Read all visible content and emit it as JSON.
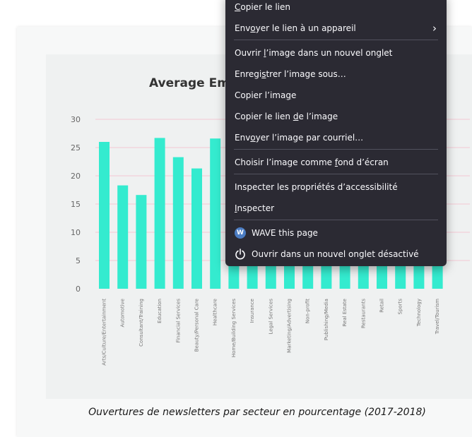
{
  "figure": {
    "caption": "Ouvertures de newsletters par secteur en pourcentage (2017-2018)"
  },
  "chart_data": {
    "type": "bar",
    "title": "Average Ema",
    "xlabel": "",
    "ylabel": "",
    "ylim": [
      0,
      30
    ],
    "yticks": [
      0,
      5,
      10,
      15,
      20,
      25,
      30
    ],
    "bar_color": "#34ebcf",
    "grid_color": "#f3c7d3",
    "categories": [
      "Arts/Culture/Entertainment",
      "Automotive",
      "Consultant/Training",
      "Education",
      "Financial Services",
      "Beauty/Personal Care",
      "Healthcare",
      "Home/Building Services",
      "Insurance",
      "Legal Services",
      "Marketing/Advertising",
      "Non-profit",
      "Publishing/Media",
      "Real Estate",
      "Restaurants",
      "Retail",
      "Sports",
      "Technology",
      "Travel/Tourism"
    ],
    "values": [
      26.0,
      18.3,
      16.6,
      26.7,
      23.3,
      21.3,
      26.6,
      22.5,
      22.5,
      22.5,
      22.5,
      22.5,
      22.5,
      22.5,
      22.5,
      22.5,
      22.5,
      22.5,
      22.5
    ]
  },
  "context_menu": {
    "items": [
      {
        "pre": "",
        "key": "C",
        "post": "opier le lien"
      },
      {
        "pre": "Env",
        "key": "o",
        "post": "yer le lien à un appareil",
        "submenu": "chevron-right-icon"
      },
      {
        "pre": "Ouvrir ",
        "key": "l",
        "post": "’image dans un nouvel onglet"
      },
      {
        "pre": "Enregi",
        "key": "s",
        "post": "trer l’image sous…"
      },
      {
        "pre": "Copier l’ima",
        "key": "g",
        "post": "e"
      },
      {
        "pre": "Copier le lien ",
        "key": "d",
        "post": "e l’image"
      },
      {
        "pre": "Env",
        "key": "o",
        "post": "yer l’image par courriel…"
      },
      {
        "pre": "Choisir l’image comme ",
        "key": "f",
        "post": "ond d’écran"
      },
      {
        "pre": "Inspecter les propriétés d’accessibilité",
        "key": "",
        "post": ""
      },
      {
        "pre": "",
        "key": "I",
        "post": "nspecter"
      },
      {
        "pre": "WAVE this page",
        "key": "",
        "post": "",
        "icon": "wave-icon",
        "icon_text": "W"
      },
      {
        "pre": "Ouvrir dans un nouvel onglet désactivé",
        "key": "",
        "post": "",
        "icon": "power-icon"
      }
    ]
  }
}
